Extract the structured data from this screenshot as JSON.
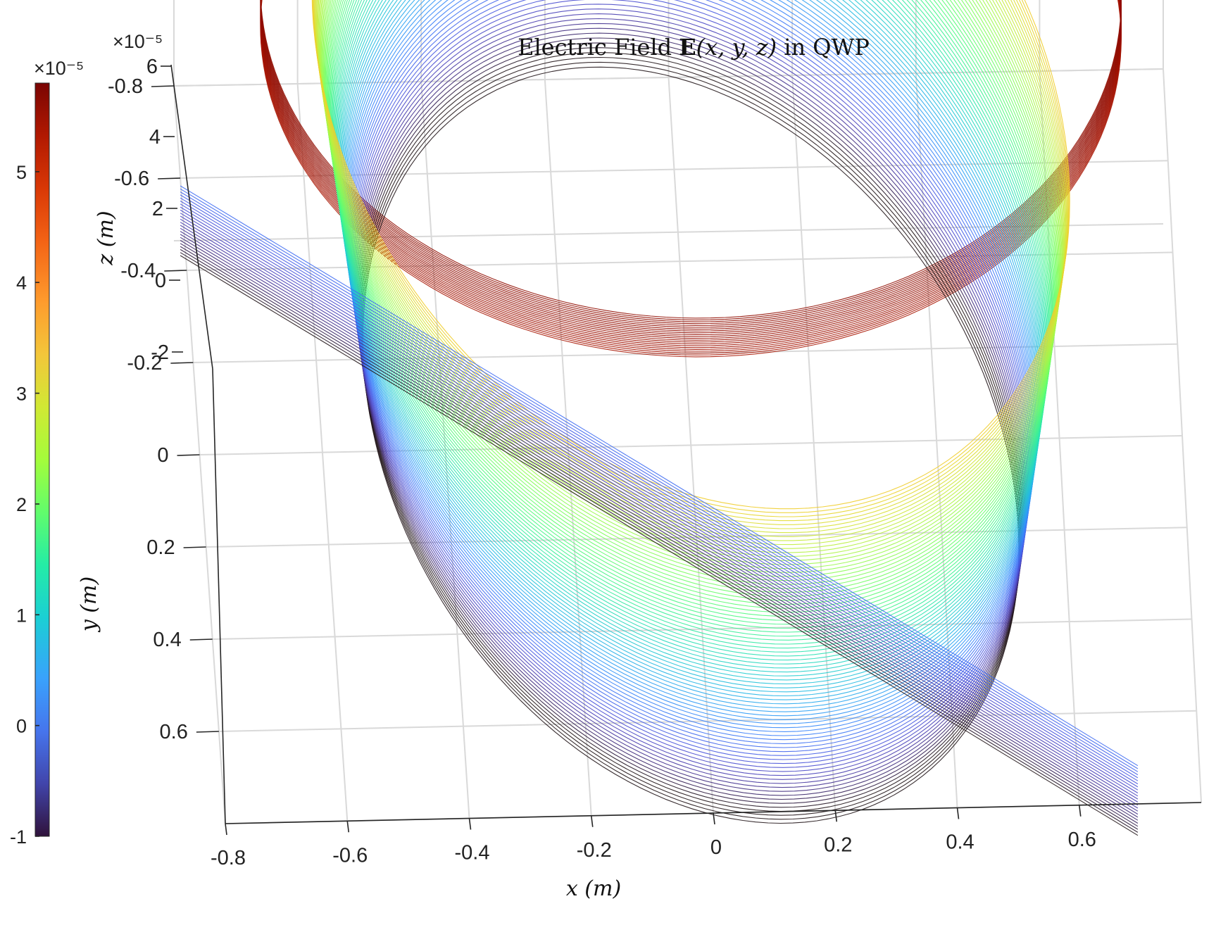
{
  "chart_data": {
    "type": "line",
    "title_prefix": "Electric Field ",
    "title_bold": "E",
    "title_args": "(x, y, z)",
    "title_suffix": " in QWP",
    "xlabel": "x (m)",
    "ylabel": "y (m)",
    "zlabel": "z (m)",
    "x_ticks": [
      "-0.8",
      "-0.6",
      "-0.4",
      "-0.2",
      "0",
      "0.2",
      "0.4",
      "0.6"
    ],
    "y_ticks": [
      "-0.8",
      "-0.6",
      "-0.4",
      "-0.2",
      "0",
      "0.2",
      "0.4",
      "0.6"
    ],
    "z_ticks": [
      "-2",
      "0",
      "2",
      "4",
      "6"
    ],
    "z_exponent": "×10⁻⁵",
    "colorbar": {
      "ticks": [
        "-1",
        "0",
        "1",
        "2",
        "3",
        "4",
        "5"
      ],
      "exponent": "×10⁻⁵",
      "range": [
        -1,
        5.8
      ],
      "colormap": "turbo",
      "placement": "left"
    },
    "xlim": [
      -0.8,
      0.8
    ],
    "ylim": [
      -0.8,
      0.8
    ],
    "zlim": [
      -2.5,
      6
    ],
    "grid": true,
    "surfaces": [
      {
        "name": "ring",
        "radius": 0.7,
        "center": [
          0,
          0
        ],
        "z_range": [
          5.3,
          5.8
        ],
        "lines": 22
      },
      {
        "name": "spiral",
        "radius_start": 0.58,
        "radius_end": 0.67,
        "z_range": [
          0,
          4.5
        ],
        "lines": 80
      },
      {
        "name": "plane",
        "from": [
          -0.8,
          -0.6
        ],
        "to": [
          0.7,
          0.7
        ],
        "z_range": [
          -1,
          -0.1
        ],
        "lines": 24
      }
    ],
    "colors": {
      "line_low": "#30123b",
      "line_high": "#7a0403"
    }
  }
}
